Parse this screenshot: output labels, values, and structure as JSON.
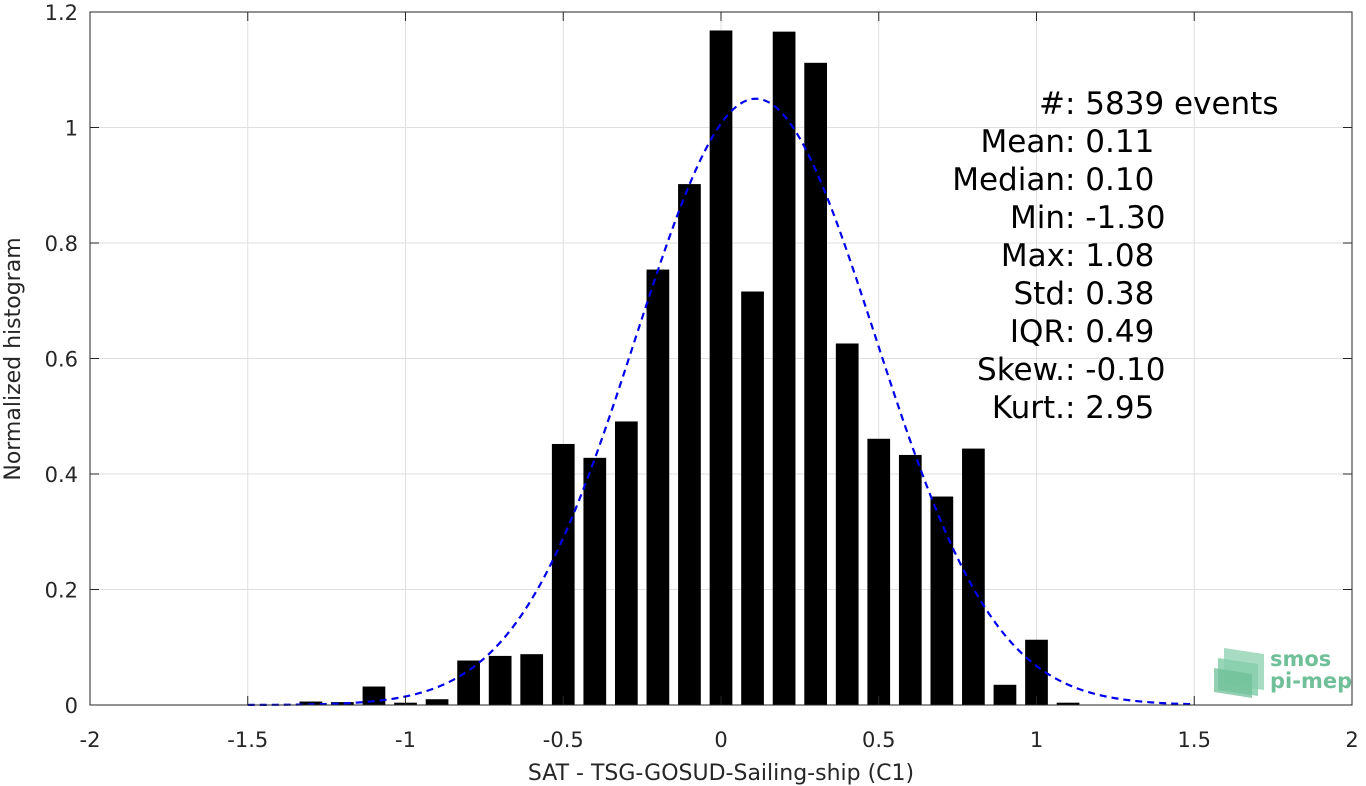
{
  "chart_data": {
    "type": "bar",
    "xlabel": "SAT - TSG-GOSUD-Sailing-ship (C1)",
    "ylabel": "Normalized histogram",
    "xlim": [
      -2,
      2
    ],
    "ylim": [
      0,
      1.2
    ],
    "xticks": [
      -2,
      -1.5,
      -1,
      -0.5,
      0,
      0.5,
      1,
      1.5,
      2
    ],
    "xtick_labels": [
      "-2",
      "-1.5",
      "-1",
      "-0.5",
      "0",
      "0.5",
      "1",
      "1.5",
      "2"
    ],
    "yticks": [
      0,
      0.2,
      0.4,
      0.6,
      0.8,
      1,
      1.2
    ],
    "ytick_labels": [
      "0",
      "0.2",
      "0.4",
      "0.6",
      "0.8",
      "1",
      "1.2"
    ],
    "grid": true,
    "bin_width": 0.1,
    "bar_color": "#000000",
    "bins": [
      {
        "x": -1.3,
        "y": 0.006
      },
      {
        "x": -1.2,
        "y": 0.005
      },
      {
        "x": -1.1,
        "y": 0.032
      },
      {
        "x": -1.0,
        "y": 0.004
      },
      {
        "x": -0.9,
        "y": 0.01
      },
      {
        "x": -0.8,
        "y": 0.077
      },
      {
        "x": -0.7,
        "y": 0.085
      },
      {
        "x": -0.6,
        "y": 0.088
      },
      {
        "x": -0.5,
        "y": 0.452
      },
      {
        "x": -0.4,
        "y": 0.428
      },
      {
        "x": -0.3,
        "y": 0.491
      },
      {
        "x": -0.2,
        "y": 0.754
      },
      {
        "x": -0.1,
        "y": 0.902
      },
      {
        "x": 0.0,
        "y": 1.168
      },
      {
        "x": 0.1,
        "y": 0.716
      },
      {
        "x": 0.2,
        "y": 1.166
      },
      {
        "x": 0.3,
        "y": 1.112
      },
      {
        "x": 0.4,
        "y": 0.626
      },
      {
        "x": 0.5,
        "y": 0.461
      },
      {
        "x": 0.6,
        "y": 0.433
      },
      {
        "x": 0.7,
        "y": 0.361
      },
      {
        "x": 0.8,
        "y": 0.444
      },
      {
        "x": 0.9,
        "y": 0.035
      },
      {
        "x": 1.0,
        "y": 0.113
      },
      {
        "x": 1.1,
        "y": 0.004
      }
    ],
    "fit": {
      "type": "gaussian",
      "style": "dashed",
      "color": "#0000ee",
      "mean": 0.11,
      "std": 0.38,
      "range": [
        -1.5,
        1.5
      ]
    },
    "annotations": [
      {
        "label": "#  ",
        "value": "5839 events"
      },
      {
        "label": "Mean ",
        "value": "0.11"
      },
      {
        "label": "Median ",
        "value": "0.10"
      },
      {
        "label": "Min ",
        "value": "-1.30"
      },
      {
        "label": "Max ",
        "value": "1.08"
      },
      {
        "label": "Std ",
        "value": "0.38"
      },
      {
        "label": "IQR ",
        "value": "0.49"
      },
      {
        "label": "Skew. ",
        "value": "-0.10"
      },
      {
        "label": "Kurt. ",
        "value": "2.95"
      }
    ],
    "logo": {
      "line1": "smos",
      "line2": "pi-mep",
      "color": "#6fbf98"
    }
  }
}
